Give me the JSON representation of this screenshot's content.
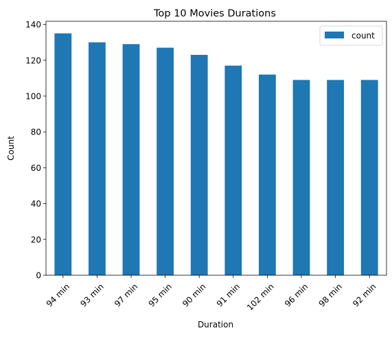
{
  "chart_data": {
    "type": "bar",
    "title": "Top 10 Movies Durations",
    "xlabel": "Duration",
    "ylabel": "Count",
    "categories": [
      "94 min",
      "93 min",
      "97 min",
      "95 min",
      "90 min",
      "91 min",
      "102 min",
      "96 min",
      "98 min",
      "92 min"
    ],
    "series": [
      {
        "name": "count",
        "values": [
          135,
          130,
          129,
          127,
          123,
          117,
          112,
          109,
          109,
          109
        ]
      }
    ],
    "ylim": [
      0,
      141.75
    ],
    "yticks": [
      0,
      20,
      40,
      60,
      80,
      100,
      120,
      140
    ],
    "grid": false,
    "legend_position": "top-right",
    "bar_color": "#1f77b4"
  }
}
